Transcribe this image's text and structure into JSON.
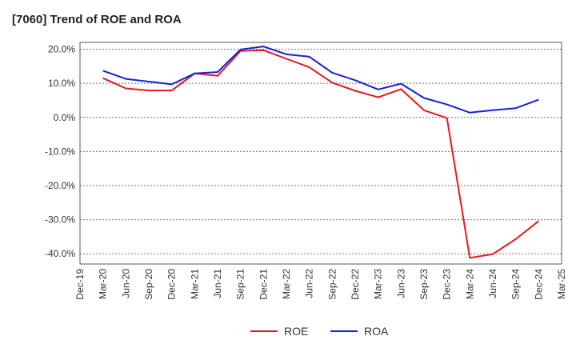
{
  "chart_data": {
    "type": "line",
    "title": "[7060]  Trend of ROE and ROA",
    "xlabel": "",
    "ylabel": "",
    "x_ticks": [
      "Dec-19",
      "Mar-20",
      "Jun-20",
      "Sep-20",
      "Dec-20",
      "Mar-21",
      "Jun-21",
      "Sep-21",
      "Dec-21",
      "Mar-22",
      "Jun-22",
      "Sep-22",
      "Dec-22",
      "Mar-23",
      "Jun-23",
      "Sep-23",
      "Dec-23",
      "Mar-24",
      "Jun-24",
      "Sep-24",
      "Dec-24",
      "Mar-25"
    ],
    "y_ticks": [
      "20.0%",
      "10.0%",
      "0.0%",
      "-10.0%",
      "-20.0%",
      "-30.0%",
      "-40.0%"
    ],
    "y_tick_values": [
      20,
      10,
      0,
      -10,
      -20,
      -30,
      -40
    ],
    "ylim": [
      -43,
      22
    ],
    "grid": true,
    "legend_position": "bottom-center",
    "x": [
      "Mar-20",
      "Jun-20",
      "Sep-20",
      "Dec-20",
      "Mar-21",
      "Jun-21",
      "Sep-21",
      "Dec-21",
      "Mar-22",
      "Jun-22",
      "Sep-22",
      "Dec-22",
      "Mar-23",
      "Jun-23",
      "Sep-23",
      "Dec-23",
      "Mar-24",
      "Jun-24",
      "Sep-24",
      "Dec-24"
    ],
    "series": [
      {
        "name": "ROE",
        "color": "#e8171c",
        "values": [
          11.5,
          8.5,
          7.9,
          7.9,
          12.9,
          12.2,
          19.5,
          19.7,
          17.2,
          14.7,
          10.2,
          7.8,
          5.9,
          8.3,
          2.1,
          -0.2,
          -41.2,
          -40.1,
          -35.7,
          -30.4
        ]
      },
      {
        "name": "ROA",
        "color": "#1420d8",
        "values": [
          13.7,
          11.3,
          10.5,
          9.7,
          12.9,
          13.3,
          19.9,
          20.8,
          18.5,
          17.8,
          13.1,
          10.9,
          8.2,
          9.9,
          5.7,
          3.8,
          1.4,
          2.1,
          2.7,
          5.2
        ]
      }
    ]
  }
}
